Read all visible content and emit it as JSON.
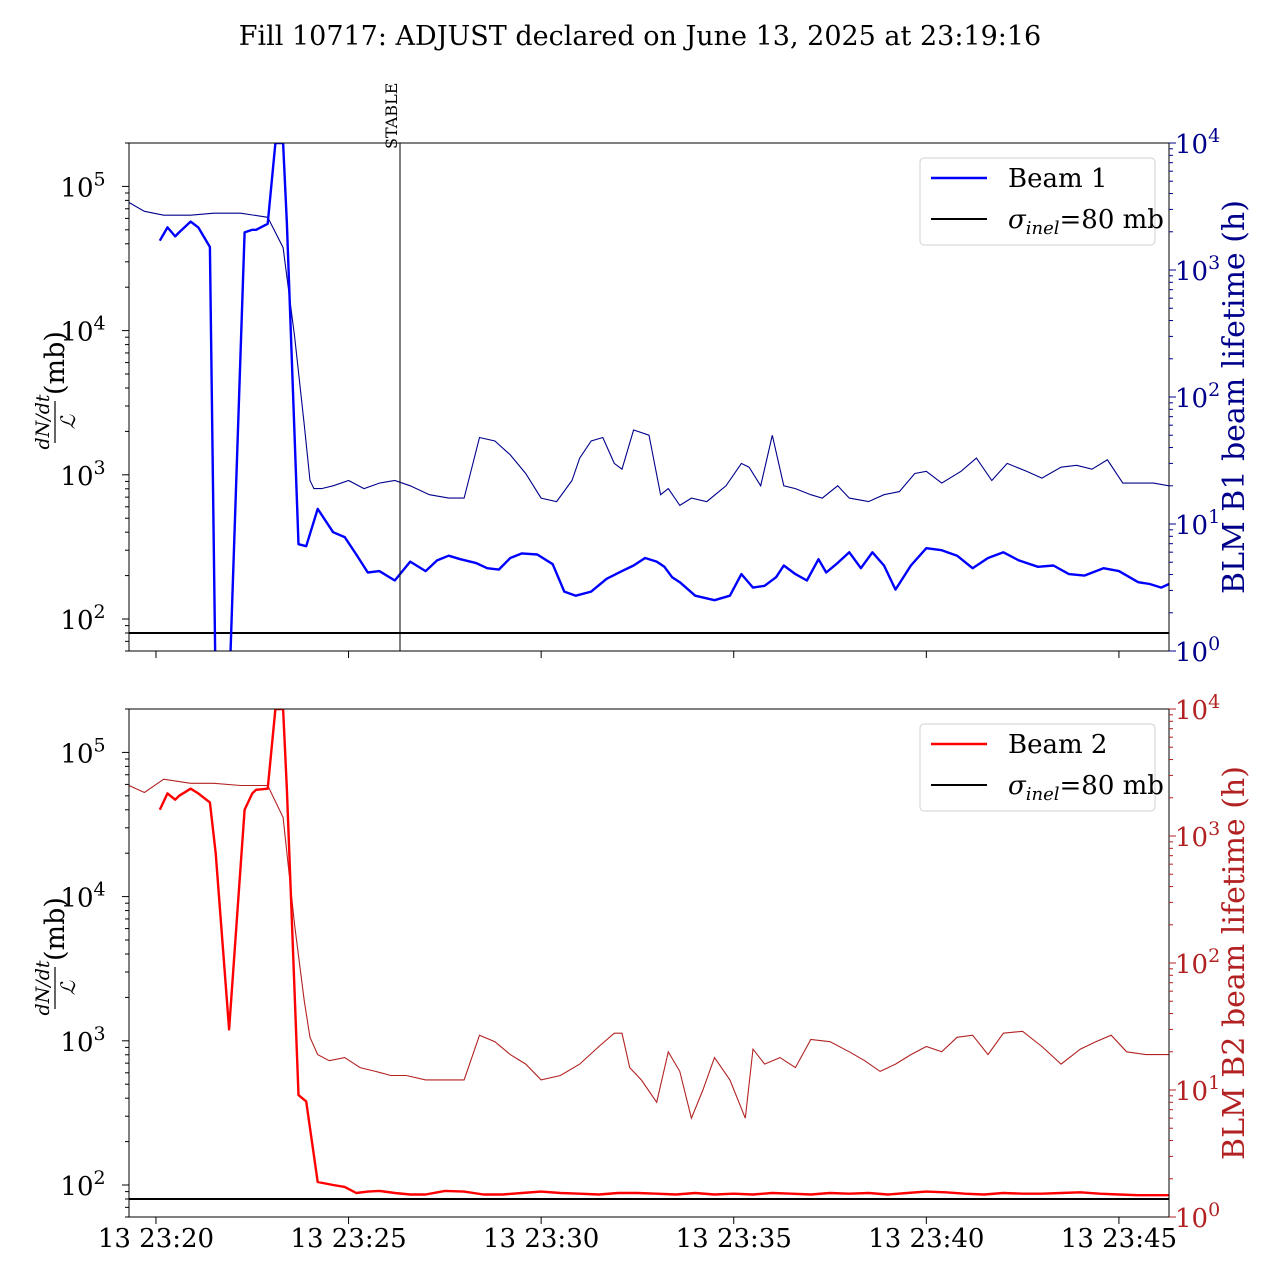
{
  "title": "Fill 10717: ADJUST declared on June 13, 2025 at 23:19:16",
  "annotation": "STABLE",
  "ylabel_left": {
    "num": "dN/dt",
    "den": "ℒ",
    "unit": "(mb)"
  },
  "x_tick_labels": [
    "13 23:20",
    "13 23:25",
    "13 23:30",
    "13 23:35",
    "13 23:40",
    "13 23:45"
  ],
  "left_tick_labels": [
    "10",
    "10",
    "10",
    "10"
  ],
  "left_tick_exps": [
    "2",
    "3",
    "4",
    "5"
  ],
  "right_tick_labels": [
    "10",
    "10",
    "10",
    "10",
    "10"
  ],
  "right_tick_exps": [
    "0",
    "1",
    "2",
    "3",
    "4"
  ],
  "colors": {
    "beam1": "#0000ff",
    "beam1_lifetime": "#00008b",
    "beam2": "#ff0000",
    "beam2_lifetime": "#b22222",
    "reference": "#000000"
  },
  "chart_data": [
    {
      "type": "line",
      "panel": "top",
      "x_unit": "minutes after 13 23:20",
      "xlim": [
        -0.7,
        26.3
      ],
      "ylim_left": [
        60,
        200000
      ],
      "ylim_right": [
        1,
        10000
      ],
      "yscale": "log",
      "xlabel": "",
      "ylabel": "dN/dt / ℒ (mb)",
      "ylabel_right": "BLM B1 beam lifetime (h)",
      "legend_position": "upper right",
      "series": [
        {
          "name": "Beam 1",
          "axis": "left",
          "x": [
            0.1,
            0.3,
            0.5,
            0.6,
            0.9,
            1.1,
            1.4,
            1.55,
            1.9,
            2.3,
            2.5,
            2.6,
            2.9,
            3.1,
            3.3,
            3.4,
            3.7,
            3.9,
            4.2,
            4.6,
            4.9,
            5.2,
            5.5,
            5.8,
            6.2,
            6.6,
            7.0,
            7.3,
            7.6,
            7.9,
            8.3,
            8.6,
            8.9,
            9.2,
            9.5,
            9.9,
            10.3,
            10.6,
            10.9,
            11.3,
            11.7,
            12.1,
            12.4,
            12.7,
            13.0,
            13.2,
            13.4,
            13.6,
            14.0,
            14.5,
            14.9,
            15.2,
            15.5,
            15.8,
            16.1,
            16.3,
            16.6,
            16.9,
            17.2,
            17.4,
            17.7,
            18.0,
            18.3,
            18.6,
            18.9,
            19.2,
            19.6,
            20.0,
            20.4,
            20.8,
            21.2,
            21.6,
            22.0,
            22.4,
            22.9,
            23.3,
            23.7,
            24.1,
            24.6,
            25.0,
            25.5,
            25.8,
            26.1,
            26.3
          ],
          "y": [
            42000,
            52000,
            45000,
            48000,
            57000,
            52000,
            38000,
            30,
            30,
            48000,
            50000,
            50000,
            55000,
            200000,
            200000,
            55000,
            330,
            320,
            580,
            400,
            370,
            280,
            210,
            215,
            185,
            250,
            215,
            255,
            275,
            260,
            245,
            225,
            220,
            265,
            285,
            280,
            240,
            155,
            145,
            155,
            190,
            215,
            235,
            265,
            250,
            230,
            195,
            180,
            145,
            135,
            145,
            205,
            165,
            170,
            195,
            235,
            205,
            185,
            260,
            210,
            245,
            290,
            225,
            290,
            235,
            160,
            235,
            310,
            300,
            275,
            225,
            265,
            290,
            255,
            230,
            235,
            205,
            200,
            225,
            215,
            180,
            175,
            165,
            175
          ]
        },
        {
          "name": "σinel=80 mb",
          "axis": "left",
          "x": [
            -0.7,
            26.3
          ],
          "y": [
            80,
            80
          ]
        },
        {
          "name": "",
          "axis": "right",
          "x": [
            -0.7,
            -0.3,
            0.2,
            0.9,
            1.5,
            2.2,
            2.9,
            3.3,
            3.6,
            3.85,
            4.0,
            4.1,
            4.3,
            4.6,
            5.0,
            5.4,
            5.8,
            6.2,
            6.6,
            7.1,
            7.6,
            8.0,
            8.4,
            8.8,
            9.2,
            9.6,
            10.0,
            10.4,
            10.8,
            11.0,
            11.3,
            11.6,
            11.9,
            12.1,
            12.4,
            12.8,
            13.1,
            13.3,
            13.6,
            13.9,
            14.3,
            14.8,
            15.2,
            15.4,
            15.7,
            16.0,
            16.3,
            16.6,
            17.0,
            17.3,
            17.7,
            18.0,
            18.5,
            18.9,
            19.3,
            19.7,
            20.0,
            20.4,
            20.9,
            21.3,
            21.7,
            22.1,
            22.6,
            23.0,
            23.5,
            23.9,
            24.3,
            24.7,
            25.1,
            25.5,
            25.9,
            26.3
          ],
          "y": [
            3400,
            2900,
            2700,
            2700,
            2800,
            2800,
            2600,
            1500,
            300,
            60,
            22,
            19,
            19,
            20,
            22,
            19,
            21,
            22,
            20,
            17,
            16,
            16,
            48,
            45,
            35,
            25,
            16,
            15,
            22,
            33,
            45,
            48,
            30,
            27,
            55,
            50,
            17,
            19,
            14,
            16,
            15,
            20,
            30,
            28,
            20,
            50,
            20,
            19,
            17,
            16,
            20,
            16,
            15,
            17,
            18,
            25,
            26,
            21,
            26,
            33,
            22,
            30,
            26,
            23,
            28,
            29,
            27,
            32,
            21,
            21,
            21,
            20
          ]
        }
      ]
    },
    {
      "type": "line",
      "panel": "bottom",
      "x_unit": "minutes after 13 23:20",
      "xlim": [
        -0.7,
        26.3
      ],
      "ylim_left": [
        60,
        200000
      ],
      "ylim_right": [
        1,
        10000
      ],
      "yscale": "log",
      "xlabel": "",
      "ylabel": "dN/dt / ℒ (mb)",
      "ylabel_right": "BLM B2 beam lifetime (h)",
      "legend_position": "upper right",
      "series": [
        {
          "name": "Beam 2",
          "axis": "left",
          "x": [
            0.1,
            0.3,
            0.5,
            0.6,
            0.9,
            1.1,
            1.4,
            1.55,
            1.9,
            2.3,
            2.5,
            2.6,
            2.9,
            3.1,
            3.3,
            3.4,
            3.7,
            3.9,
            4.2,
            4.6,
            4.9,
            5.2,
            5.5,
            5.8,
            6.2,
            6.6,
            7.0,
            7.5,
            8.0,
            8.5,
            9.0,
            9.5,
            10.0,
            10.5,
            11.0,
            11.5,
            12.0,
            12.5,
            13.0,
            13.5,
            14.0,
            14.5,
            15.0,
            15.5,
            16.0,
            16.5,
            17.0,
            17.5,
            18.0,
            18.5,
            19.0,
            19.5,
            20.0,
            20.5,
            21.0,
            21.5,
            22.0,
            22.5,
            23.0,
            23.5,
            24.0,
            24.5,
            25.0,
            25.5,
            26.0,
            26.3
          ],
          "y": [
            40000,
            52000,
            47000,
            50000,
            56000,
            52000,
            45000,
            20000,
            1200,
            40000,
            52000,
            55000,
            56000,
            200000,
            200000,
            55000,
            420,
            380,
            105,
            100,
            97,
            88,
            90,
            91,
            88,
            86,
            86,
            91,
            90,
            86,
            86,
            88,
            90,
            88,
            87,
            86,
            88,
            88,
            87,
            86,
            88,
            86,
            87,
            86,
            88,
            87,
            86,
            88,
            87,
            88,
            86,
            88,
            90,
            89,
            87,
            86,
            88,
            87,
            87,
            88,
            89,
            87,
            86,
            85,
            85,
            85
          ]
        },
        {
          "name": "σinel=80 mb",
          "axis": "left",
          "x": [
            -0.7,
            26.3
          ],
          "y": [
            80,
            80
          ]
        },
        {
          "name": "",
          "axis": "right",
          "x": [
            -0.7,
            -0.3,
            0.2,
            0.9,
            1.5,
            2.2,
            2.9,
            3.3,
            3.6,
            3.85,
            4.0,
            4.2,
            4.5,
            4.9,
            5.3,
            5.7,
            6.1,
            6.5,
            7.0,
            7.5,
            8.0,
            8.4,
            8.8,
            9.2,
            9.6,
            10.0,
            10.5,
            11.0,
            11.5,
            11.9,
            12.1,
            12.3,
            12.6,
            13.0,
            13.3,
            13.6,
            13.9,
            14.2,
            14.5,
            14.9,
            15.3,
            15.5,
            15.8,
            16.2,
            16.6,
            17.0,
            17.5,
            18.0,
            18.4,
            18.8,
            19.2,
            19.6,
            20.0,
            20.4,
            20.8,
            21.2,
            21.6,
            22.0,
            22.5,
            23.0,
            23.5,
            24.0,
            24.4,
            24.8,
            25.2,
            25.7,
            26.3
          ],
          "y": [
            2500,
            2200,
            2800,
            2600,
            2600,
            2500,
            2500,
            1400,
            200,
            50,
            26,
            19,
            17,
            18,
            15,
            14,
            13,
            13,
            12,
            12,
            12,
            27,
            24,
            19,
            16,
            12,
            13,
            16,
            22,
            28,
            28,
            15,
            12,
            8,
            20,
            14,
            6,
            10,
            18,
            12,
            6,
            21,
            16,
            18,
            15,
            25,
            24,
            20,
            17,
            14,
            16,
            19,
            22,
            20,
            26,
            27,
            19,
            28,
            29,
            22,
            16,
            21,
            24,
            27,
            20,
            19,
            19
          ]
        }
      ]
    }
  ]
}
